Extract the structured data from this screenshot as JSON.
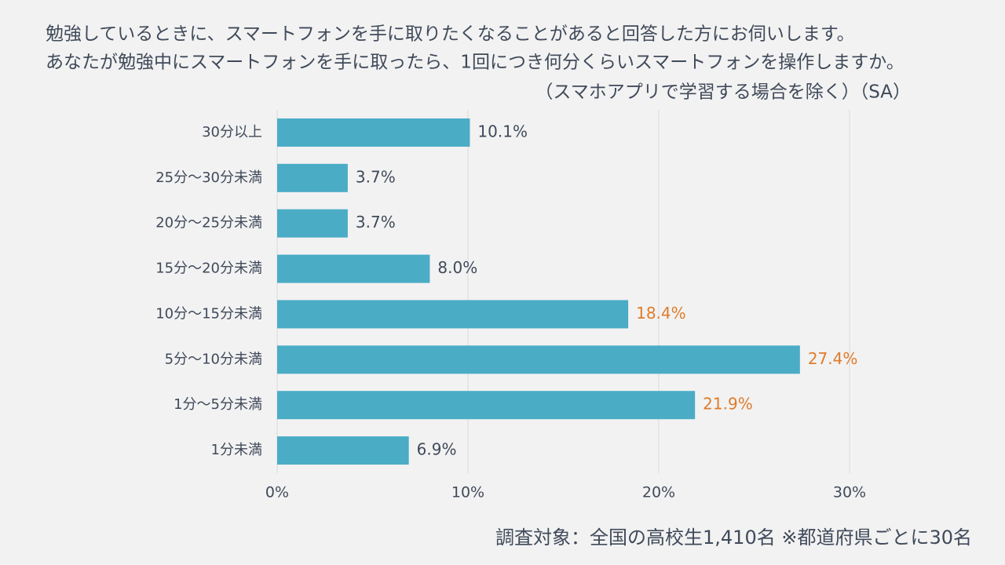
{
  "chart_data": {
    "type": "hbar",
    "title": [
      "勉強しているときに、スマートフォンを手に取りたくなることがあると回答した方にお伺いします。",
      "あなたが勉強中にスマートフォンを手に取ったら、1回につき何分くらいスマートフォンを操作しますか。",
      "（スマホアプリで学習する場合を除く）（SA）"
    ],
    "categories": [
      "30分以上",
      "25分～30分未満",
      "20分～25分未満",
      "15分～20分未満",
      "10分～15分未満",
      "5分～10分未満",
      "1分～5分未満",
      "1分未満"
    ],
    "values": [
      10.1,
      3.7,
      3.7,
      8.0,
      18.4,
      27.4,
      21.9,
      6.9
    ],
    "value_labels": [
      "10.1%",
      "3.7%",
      "3.7%",
      "8.0%",
      "18.4%",
      "27.4%",
      "21.9%",
      "6.9%"
    ],
    "label_colors": [
      "#404a5a",
      "#404a5a",
      "#404a5a",
      "#404a5a",
      "#e07b2a",
      "#e07b2a",
      "#e07b2a",
      "#404a5a"
    ],
    "color": "#4bacc6",
    "xlim": [
      0,
      30
    ],
    "xticks": [
      {
        "value": 0,
        "label": "0%"
      },
      {
        "value": 10,
        "label": "10%"
      },
      {
        "value": 20,
        "label": "20%"
      },
      {
        "value": 30,
        "label": "30%"
      }
    ],
    "grid": true,
    "note": "調査対象：全国の高校生1,410名 ※都道府県ごとに30名"
  }
}
